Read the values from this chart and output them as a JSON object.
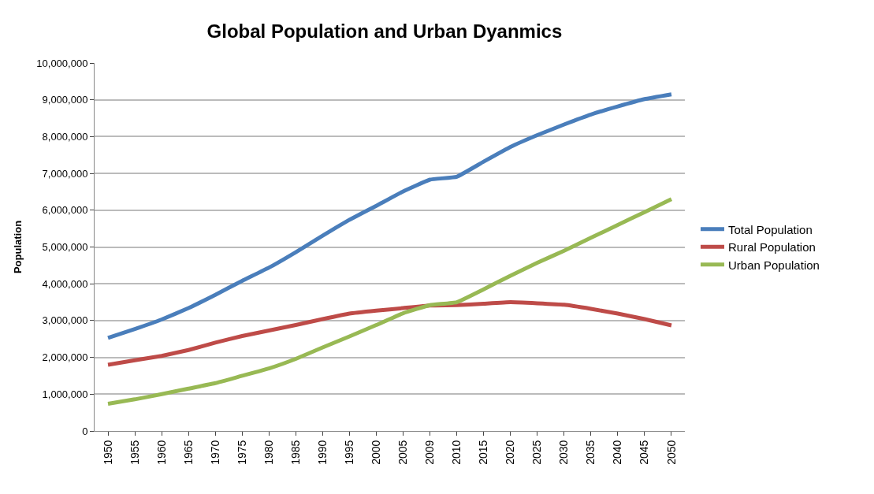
{
  "chart_data": {
    "type": "line",
    "title": "Global Population and Urban Dyanmics",
    "ylabel": "Population",
    "categories": [
      "1950",
      "1955",
      "1960",
      "1965",
      "1970",
      "1975",
      "1980",
      "1985",
      "1990",
      "1995",
      "2000",
      "2005",
      "2009",
      "2010",
      "2015",
      "2020",
      "2025",
      "2030",
      "2035",
      "2040",
      "2045",
      "2050"
    ],
    "series": [
      {
        "name": "Total Population",
        "color": "#4a7ebb",
        "values": [
          2530000,
          2770000,
          3030000,
          3340000,
          3700000,
          4080000,
          4440000,
          4860000,
          5310000,
          5740000,
          6120000,
          6510000,
          6830000,
          6910000,
          7320000,
          7720000,
          8040000,
          8330000,
          8600000,
          8820000,
          9020000,
          9150000
        ]
      },
      {
        "name": "Rural Population",
        "color": "#be4b48",
        "values": [
          1800000,
          1920000,
          2040000,
          2200000,
          2400000,
          2580000,
          2730000,
          2880000,
          3040000,
          3190000,
          3270000,
          3340000,
          3410000,
          3420000,
          3460000,
          3500000,
          3470000,
          3430000,
          3320000,
          3190000,
          3040000,
          2870000
        ]
      },
      {
        "name": "Urban Population",
        "color": "#98b954",
        "values": [
          740000,
          860000,
          1000000,
          1150000,
          1300000,
          1500000,
          1700000,
          1960000,
          2270000,
          2570000,
          2880000,
          3200000,
          3420000,
          3500000,
          3850000,
          4220000,
          4570000,
          4900000,
          5250000,
          5600000,
          5950000,
          6300000
        ]
      }
    ],
    "ylim": [
      0,
      10000000
    ],
    "yticks": [
      {
        "value": 0,
        "label": "0"
      },
      {
        "value": 1000000,
        "label": "1,000,000"
      },
      {
        "value": 2000000,
        "label": "2,000,000"
      },
      {
        "value": 3000000,
        "label": "3,000,000"
      },
      {
        "value": 4000000,
        "label": "4,000,000"
      },
      {
        "value": 5000000,
        "label": "5,000,000"
      },
      {
        "value": 6000000,
        "label": "6,000,000"
      },
      {
        "value": 7000000,
        "label": "7,000,000"
      },
      {
        "value": 8000000,
        "label": "8,000,000"
      },
      {
        "value": 9000000,
        "label": "9,000,000"
      },
      {
        "value": 10000000,
        "label": "10,000,000"
      }
    ],
    "grid": "y",
    "legend": "right",
    "marker": "none",
    "line_style": "solid"
  }
}
